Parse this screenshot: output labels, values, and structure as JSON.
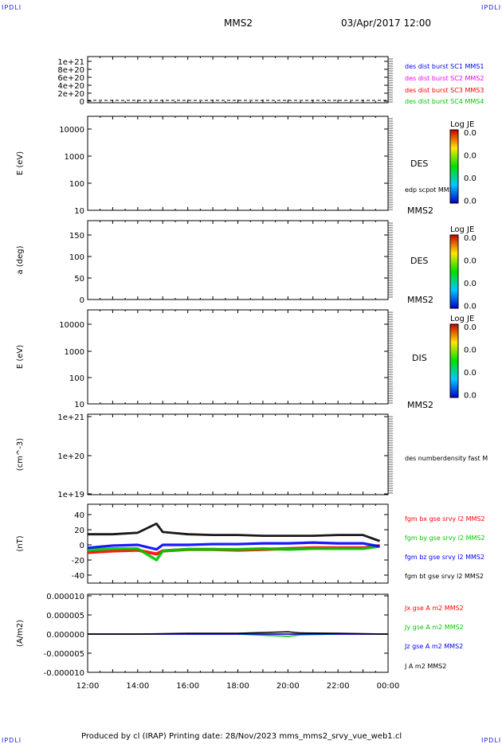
{
  "corner_marks": {
    "tl": "IPDLI",
    "tr": "IPDLI",
    "bl": "IPDLI",
    "br": "IPDLI"
  },
  "header": {
    "spacecraft": "MMS2",
    "datetime": "03/Apr/2017 12:00"
  },
  "footer": {
    "text": "Produced by cl (IRAP)   Printing date: 28/Nov/2023   mms_mms2_srvy_vue_web1.cl"
  },
  "colors": {
    "black": "#000000",
    "blue": "#0000ff",
    "magenta": "#ff00ff",
    "red": "#ff0000",
    "green": "#00c800"
  },
  "chart_data": [
    {
      "type": "line",
      "yticks": [
        "1e+21",
        "8e+20",
        "6e+20",
        "4e+20",
        "2e+20",
        "0"
      ],
      "ylim": [
        0,
        1e+21
      ],
      "ylabel": "",
      "baseline": "dashed at 0",
      "legend": [
        {
          "name": "des dist burst SC1 MMS1",
          "color": "#0000ff"
        },
        {
          "name": "des dist burst SC2 MMS2",
          "color": "#ff00ff"
        },
        {
          "name": "des dist burst SC3 MMS3",
          "color": "#ff0000"
        },
        {
          "name": "des dist burst SC4 MMS4",
          "color": "#00c800"
        }
      ]
    },
    {
      "type": "heatmap",
      "ylabel": "E (eV)",
      "scale": "log",
      "yticks": [
        "10000",
        "1000",
        "100",
        "10"
      ],
      "species": "DES",
      "tag": "MMS2",
      "overlay_label": "edp scpot MMS2",
      "colorbar": {
        "title": "Log JE",
        "ticks": [
          "0.0",
          "0.0",
          "0.0",
          "0.0"
        ]
      }
    },
    {
      "type": "heatmap",
      "ylabel": "a (deg)",
      "yticks": [
        "150",
        "100",
        "50",
        "0"
      ],
      "species": "DES",
      "tag": "MMS2",
      "colorbar": {
        "title": "Log JE",
        "ticks": [
          "0.0",
          "0.0",
          "0.0",
          "0.0"
        ]
      }
    },
    {
      "type": "heatmap",
      "ylabel": "E (eV)",
      "scale": "log",
      "yticks": [
        "10000",
        "1000",
        "100",
        "10"
      ],
      "species": "DIS",
      "tag": "MMS2",
      "colorbar": {
        "title": "Log JE",
        "ticks": [
          "0.0",
          "0.0",
          "0.0",
          "0.0"
        ]
      }
    },
    {
      "type": "line",
      "ylabel": "(cm^-3)",
      "scale": "log",
      "yticks": [
        "1e+21",
        "1e+20",
        "1e+19"
      ],
      "legend": [
        {
          "name": "des numberdensity fast M",
          "color": "#000000"
        }
      ]
    },
    {
      "type": "line",
      "ylabel": "(nT)",
      "yticks": [
        "40",
        "20",
        "0",
        "-20",
        "-40"
      ],
      "ylim": [
        -50,
        50
      ],
      "x": [
        "12:00",
        "13:00",
        "14:00",
        "14:45",
        "15:00",
        "16:00",
        "17:00",
        "18:00",
        "19:00",
        "20:00",
        "21:00",
        "22:00",
        "23:00",
        "23:40"
      ],
      "series": [
        {
          "name": "fgm bx gse srvy l2 MMS2",
          "color": "#ff0000",
          "values": [
            -10,
            -8,
            -7,
            -12,
            -8,
            -6,
            -6,
            -7,
            -6,
            -5,
            -4,
            -4,
            -4,
            -1
          ]
        },
        {
          "name": "fgm by gse srvy l2 MMS2",
          "color": "#00c800",
          "values": [
            -7,
            -5,
            -5,
            -20,
            -8,
            -6,
            -6,
            -6,
            -5,
            -6,
            -5,
            -5,
            -5,
            -2
          ]
        },
        {
          "name": "fgm bz gse srvy l2 MMS2",
          "color": "#0000ff",
          "values": [
            -4,
            -1,
            0,
            -6,
            0,
            0,
            1,
            1,
            2,
            2,
            3,
            2,
            2,
            -2
          ]
        },
        {
          "name": "fgm bt gse srvy l2 MMS2",
          "color": "#000000",
          "values": [
            14,
            14,
            16,
            28,
            17,
            14,
            13,
            13,
            12,
            12,
            12,
            13,
            13,
            5
          ]
        }
      ]
    },
    {
      "type": "line",
      "ylabel": "(A/m2)",
      "yticks": [
        "0.000010",
        "0.000005",
        "0.000000",
        "-0.000005",
        "-0.000010"
      ],
      "ylim": [
        -1e-05,
        1e-05
      ],
      "x": [
        "12:00",
        "14:00",
        "16:00",
        "18:00",
        "20:00",
        "20:30",
        "22:00",
        "00:00"
      ],
      "series": [
        {
          "name": "Jx gse A m2 MMS2",
          "color": "#ff0000",
          "values": [
            0,
            0,
            0,
            0,
            0,
            0,
            0,
            0
          ]
        },
        {
          "name": "Jy gse A m2 MMS2",
          "color": "#00c800",
          "values": [
            0,
            0,
            0,
            0,
            -6e-07,
            -2e-07,
            0,
            0
          ]
        },
        {
          "name": "Jz gse A m2 MMS2",
          "color": "#0000ff",
          "values": [
            0,
            0,
            0,
            0,
            0,
            0,
            0,
            0
          ]
        },
        {
          "name": "J A m2 MMS2",
          "color": "#000000",
          "values": [
            0,
            0,
            2e-07,
            2e-07,
            6e-07,
            3e-07,
            2e-07,
            0
          ]
        }
      ]
    }
  ],
  "xaxis": {
    "ticks": [
      "12:00",
      "14:00",
      "16:00",
      "18:00",
      "20:00",
      "22:00",
      "00:00"
    ]
  }
}
